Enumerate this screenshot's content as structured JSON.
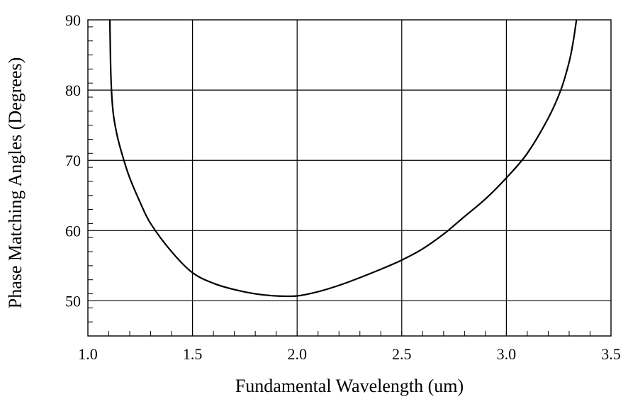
{
  "chart_data": {
    "type": "line",
    "title": "",
    "xlabel": "Fundamental Wavelength (um)",
    "ylabel": "Phase Matching Angles (Degrees)",
    "xlim": [
      1.0,
      3.5
    ],
    "ylim": [
      45,
      90
    ],
    "xticks": [
      1.0,
      1.5,
      2.0,
      2.5,
      3.0,
      3.5
    ],
    "xtick_labels": [
      "1.0",
      "1.5",
      "2.0",
      "2.5",
      "3.0",
      "3.5"
    ],
    "yticks": [
      50,
      60,
      70,
      80,
      90
    ],
    "ytick_labels": [
      "50",
      "60",
      "70",
      "80",
      "90"
    ],
    "grid": true,
    "series": [
      {
        "x": [
          1.105,
          1.11,
          1.12,
          1.14,
          1.17,
          1.2,
          1.25,
          1.3,
          1.4,
          1.5,
          1.6,
          1.7,
          1.8,
          1.9,
          2.0,
          2.1,
          2.2,
          2.3,
          2.4,
          2.5,
          2.6,
          2.7,
          2.8,
          2.9,
          3.0,
          3.1,
          3.2,
          3.26,
          3.3,
          3.32,
          3.335
        ],
        "y": [
          90,
          82,
          77,
          73.5,
          70.2,
          67.5,
          64,
          61,
          57,
          54,
          52.5,
          51.6,
          51,
          50.7,
          50.7,
          51.3,
          52.2,
          53.3,
          54.5,
          55.8,
          57.4,
          59.5,
          62,
          64.5,
          67.5,
          71,
          76,
          80,
          84,
          87,
          90
        ]
      }
    ]
  }
}
